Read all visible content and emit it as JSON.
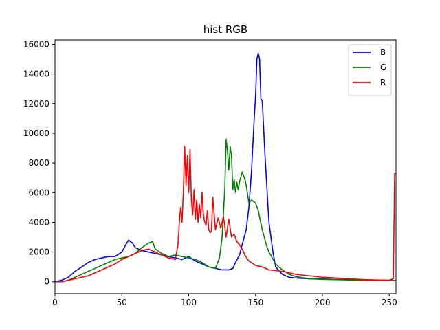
{
  "chart_data": {
    "type": "line",
    "title": "hist RGB",
    "xlabel": "",
    "ylabel": "",
    "xlim": [
      0,
      255
    ],
    "ylim": [
      -800,
      16300
    ],
    "xticks": [
      0,
      50,
      100,
      150,
      200,
      250
    ],
    "yticks": [
      0,
      2000,
      4000,
      6000,
      8000,
      10000,
      12000,
      14000,
      16000
    ],
    "grid": false,
    "legend_position": "top-right",
    "series": [
      {
        "name": "B",
        "color": "#0000ff",
        "x": [
          0,
          5,
          10,
          15,
          20,
          25,
          30,
          35,
          40,
          45,
          50,
          53,
          55,
          58,
          60,
          65,
          70,
          75,
          80,
          85,
          90,
          95,
          100,
          105,
          110,
          115,
          120,
          125,
          130,
          133,
          135,
          138,
          140,
          143,
          145,
          147,
          149,
          150,
          151,
          152,
          153,
          154,
          155,
          157,
          160,
          163,
          165,
          170,
          175,
          180,
          190,
          200,
          210,
          220,
          230,
          240,
          250,
          254,
          255
        ],
        "values": [
          0,
          100,
          300,
          700,
          1000,
          1300,
          1500,
          1600,
          1700,
          1700,
          2000,
          2500,
          2800,
          2600,
          2300,
          2100,
          2000,
          1900,
          1800,
          1700,
          1600,
          1500,
          1700,
          1400,
          1200,
          1000,
          900,
          800,
          800,
          900,
          1300,
          1800,
          2500,
          3500,
          5000,
          7500,
          11000,
          12500,
          15000,
          15400,
          15000,
          12300,
          12200,
          8600,
          4000,
          2000,
          1000,
          500,
          300,
          250,
          200,
          180,
          160,
          140,
          120,
          100,
          80,
          70,
          60
        ]
      },
      {
        "name": "G",
        "color": "#008000",
        "x": [
          0,
          5,
          10,
          15,
          20,
          25,
          30,
          35,
          40,
          45,
          50,
          55,
          60,
          65,
          70,
          73,
          75,
          80,
          85,
          90,
          95,
          100,
          105,
          110,
          115,
          120,
          123,
          125,
          127,
          128,
          129,
          130,
          131,
          132,
          133,
          134,
          135,
          136,
          137,
          138,
          140,
          142,
          143,
          145,
          147,
          150,
          152,
          155,
          158,
          160,
          165,
          170,
          175,
          180,
          190,
          200,
          210,
          220,
          230,
          240,
          250,
          255
        ],
        "values": [
          0,
          0,
          100,
          300,
          500,
          700,
          900,
          1100,
          1300,
          1500,
          1600,
          1700,
          1900,
          2300,
          2600,
          2700,
          2200,
          1900,
          1700,
          1800,
          1700,
          1600,
          1500,
          1300,
          1000,
          900,
          1600,
          3000,
          6300,
          9600,
          8800,
          7500,
          9100,
          8500,
          6200,
          6900,
          6000,
          6700,
          6200,
          6700,
          7400,
          6900,
          6500,
          5300,
          5500,
          5300,
          4800,
          3500,
          2500,
          2000,
          1200,
          800,
          500,
          350,
          200,
          160,
          140,
          120,
          110,
          100,
          90,
          80
        ]
      },
      {
        "name": "R",
        "color": "#ff0000",
        "x": [
          0,
          5,
          10,
          15,
          20,
          25,
          30,
          35,
          40,
          45,
          50,
          55,
          60,
          65,
          70,
          75,
          80,
          85,
          90,
          92,
          93,
          94,
          95,
          96,
          97,
          98,
          99,
          100,
          101,
          102,
          103,
          104,
          105,
          106,
          107,
          108,
          109,
          110,
          111,
          112,
          113,
          114,
          115,
          116,
          117,
          118,
          120,
          122,
          124,
          126,
          128,
          130,
          132,
          134,
          136,
          138,
          140,
          142,
          145,
          150,
          155,
          160,
          170,
          180,
          190,
          200,
          210,
          220,
          230,
          240,
          250,
          253,
          254,
          255
        ],
        "values": [
          0,
          0,
          100,
          200,
          300,
          400,
          600,
          800,
          1000,
          1200,
          1500,
          1700,
          1900,
          2100,
          2200,
          2000,
          1800,
          1600,
          1500,
          2500,
          4000,
          5000,
          4000,
          6000,
          9100,
          6500,
          8500,
          6000,
          8900,
          5500,
          4500,
          6200,
          4200,
          5500,
          4000,
          5200,
          4300,
          6000,
          4500,
          4000,
          3800,
          4800,
          3500,
          3300,
          3400,
          5700,
          3500,
          4300,
          3600,
          4400,
          3000,
          4200,
          3000,
          3200,
          2700,
          2500,
          2200,
          1800,
          1400,
          1100,
          1000,
          800,
          700,
          500,
          400,
          300,
          250,
          200,
          150,
          120,
          100,
          200,
          7300,
          7300
        ]
      }
    ]
  }
}
